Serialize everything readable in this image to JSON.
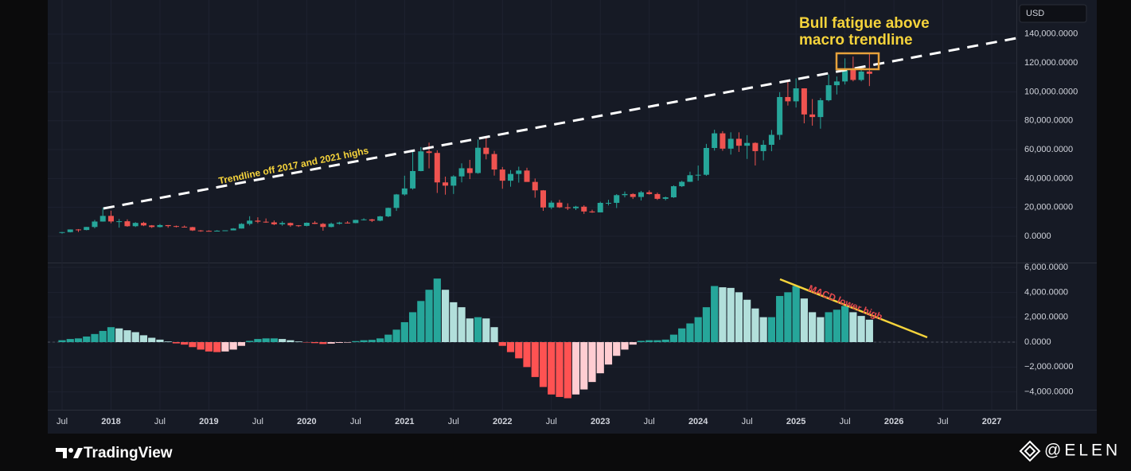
{
  "currency": "USD",
  "brand": "TradingView",
  "watermark": "@ELEN",
  "chart_data": [
    {
      "type": "candlestick",
      "annotations": [
        "Bull fatigue above",
        "macro trendline",
        "Trendline off 2017 and 2021 highs"
      ],
      "up_color": "#26a69a",
      "down_color": "#ef5350",
      "grid": true,
      "ylim": [
        -18200,
        163600
      ],
      "yticks": [
        {
          "value": 0,
          "label": "0.0000"
        },
        {
          "value": 20000,
          "label": "20,000.0000"
        },
        {
          "value": 40000,
          "label": "40,000.0000"
        },
        {
          "value": 60000,
          "label": "60,000.0000"
        },
        {
          "value": 80000,
          "label": "80,000.0000"
        },
        {
          "value": 100000,
          "label": "100,000.0000"
        },
        {
          "value": 120000,
          "label": "120,000.0000"
        },
        {
          "value": 140000,
          "label": "140,000.0000"
        }
      ],
      "x": [
        "2017-07",
        "2017-08",
        "2017-09",
        "2017-10",
        "2017-11",
        "2017-12",
        "2018-01",
        "2018-02",
        "2018-03",
        "2018-04",
        "2018-05",
        "2018-06",
        "2018-07",
        "2018-08",
        "2018-09",
        "2018-10",
        "2018-11",
        "2018-12",
        "2019-01",
        "2019-02",
        "2019-03",
        "2019-04",
        "2019-05",
        "2019-06",
        "2019-07",
        "2019-08",
        "2019-09",
        "2019-10",
        "2019-11",
        "2019-12",
        "2020-01",
        "2020-02",
        "2020-03",
        "2020-04",
        "2020-05",
        "2020-06",
        "2020-07",
        "2020-08",
        "2020-09",
        "2020-10",
        "2020-11",
        "2020-12",
        "2021-01",
        "2021-02",
        "2021-03",
        "2021-04",
        "2021-05",
        "2021-06",
        "2021-07",
        "2021-08",
        "2021-09",
        "2021-10",
        "2021-11",
        "2021-12",
        "2022-01",
        "2022-02",
        "2022-03",
        "2022-04",
        "2022-05",
        "2022-06",
        "2022-07",
        "2022-08",
        "2022-09",
        "2022-10",
        "2022-11",
        "2022-12",
        "2023-01",
        "2023-02",
        "2023-03",
        "2023-04",
        "2023-05",
        "2023-06",
        "2023-07",
        "2023-08",
        "2023-09",
        "2023-10",
        "2023-11",
        "2023-12",
        "2024-01",
        "2024-02",
        "2024-03",
        "2024-04",
        "2024-05",
        "2024-06",
        "2024-07",
        "2024-08",
        "2024-09",
        "2024-10",
        "2024-11",
        "2024-12",
        "2025-01",
        "2025-02",
        "2025-03",
        "2025-04",
        "2025-05",
        "2025-06",
        "2025-07",
        "2025-08",
        "2025-09",
        "2025-10"
      ],
      "open": [
        2480,
        2871,
        4701,
        4341,
        6440,
        10198,
        14112,
        10237,
        10385,
        6973,
        9251,
        7500,
        6391,
        7735,
        7044,
        6619,
        6318,
        4025,
        3746,
        3460,
        3853,
        4105,
        5350,
        8574,
        10818,
        10086,
        9630,
        8299,
        9193,
        7571,
        7194,
        9346,
        8600,
        6438,
        8672,
        9463,
        9145,
        11322,
        11679,
        10796,
        13791,
        19633,
        28951,
        33114,
        45160,
        58800,
        57700,
        37300,
        35040,
        41460,
        47100,
        43790,
        61300,
        56950,
        46210,
        38470,
        43160,
        45510,
        37630,
        31790,
        19940,
        23290,
        20050,
        19420,
        20490,
        17170,
        16540,
        23130,
        23140,
        28470,
        29230,
        27210,
        30470,
        29230,
        25940,
        26970,
        34650,
        37720,
        42280,
        42580,
        61130,
        71280,
        60670,
        67490,
        62680,
        64630,
        58970,
        63330,
        70220,
        96410,
        93430,
        102430,
        84350,
        82550,
        94200,
        104600,
        107200,
        115750,
        108250,
        114050
      ],
      "high": [
        2950,
        4740,
        4975,
        6470,
        11300,
        19783,
        17712,
        11958,
        11710,
        9759,
        9990,
        7760,
        8490,
        7770,
        7410,
        7460,
        6560,
        4310,
        4120,
        4210,
        4110,
        5640,
        9070,
        13880,
        13130,
        12330,
        10900,
        10370,
        9510,
        7750,
        9580,
        10500,
        9190,
        9460,
        10070,
        10430,
        11440,
        12460,
        12050,
        14100,
        19860,
        29300,
        41950,
        58350,
        61780,
        64850,
        59500,
        41300,
        42300,
        50500,
        52900,
        67000,
        69000,
        59100,
        47990,
        45820,
        48200,
        47440,
        40000,
        31990,
        24670,
        25200,
        22790,
        21090,
        21480,
        18390,
        23960,
        25250,
        29190,
        31000,
        29820,
        31430,
        31800,
        30230,
        27480,
        35280,
        38440,
        44730,
        48970,
        63970,
        73800,
        72800,
        71980,
        71960,
        70000,
        65100,
        66500,
        73600,
        99800,
        108350,
        109300,
        102500,
        95000,
        95760,
        111900,
        110600,
        123200,
        124450,
        117900,
        126200
      ],
      "low": [
        1830,
        2671,
        2975,
        4110,
        5500,
        10100,
        9035,
        5968,
        6600,
        6430,
        7035,
        5755,
        6070,
        5880,
        6110,
        6140,
        3650,
        3120,
        3400,
        3400,
        3730,
        4080,
        5330,
        7490,
        9070,
        9320,
        7710,
        7300,
        6520,
        6430,
        6870,
        8450,
        3850,
        6150,
        8110,
        8830,
        8980,
        10950,
        9880,
        10400,
        13200,
        17570,
        28130,
        32290,
        45000,
        47000,
        30000,
        28800,
        29280,
        37330,
        39600,
        43290,
        53250,
        42000,
        32900,
        34320,
        37150,
        37700,
        26700,
        17600,
        18780,
        19600,
        18150,
        18190,
        15480,
        16260,
        16500,
        21350,
        19550,
        26940,
        25810,
        24800,
        28860,
        25170,
        24900,
        26540,
        34100,
        37620,
        38550,
        41880,
        59320,
        59200,
        56550,
        58400,
        53550,
        49000,
        52550,
        58900,
        66800,
        90500,
        89160,
        78200,
        76600,
        74500,
        93400,
        98200,
        105100,
        107300,
        107270,
        104000
      ],
      "close": [
        2871,
        4701,
        4341,
        6440,
        10198,
        14112,
        10237,
        10385,
        6973,
        9251,
        7500,
        6391,
        7735,
        7044,
        6619,
        6318,
        4025,
        3746,
        3460,
        3853,
        4105,
        5350,
        8574,
        10818,
        10086,
        9630,
        8299,
        9193,
        7571,
        7194,
        9346,
        8600,
        6438,
        8672,
        9463,
        9145,
        11322,
        11679,
        10796,
        13791,
        19633,
        28951,
        33114,
        45160,
        58800,
        57700,
        37300,
        35040,
        41460,
        47100,
        43790,
        61300,
        56950,
        46210,
        38470,
        43160,
        45510,
        37630,
        31790,
        19940,
        23290,
        20050,
        19420,
        20490,
        17170,
        16540,
        23130,
        23140,
        28470,
        29230,
        27210,
        30470,
        29230,
        25940,
        26970,
        34650,
        37720,
        42280,
        42580,
        61130,
        71280,
        60670,
        67490,
        62680,
        64630,
        58970,
        63330,
        70220,
        96410,
        93430,
        102430,
        84350,
        82550,
        94200,
        104600,
        107200,
        115750,
        108250,
        114050,
        112500
      ]
    },
    {
      "type": "bar",
      "annotations": [
        "MACD lower high"
      ],
      "colors": {
        "up_rising": "#26a69a",
        "up_falling": "#b2dfdb",
        "down_falling": "#ff5252",
        "down_rising": "#ffcdd2"
      },
      "grid": true,
      "ylim": [
        -5425,
        6320
      ],
      "yticks": [
        {
          "value": -4000,
          "label": "−4,000.0000"
        },
        {
          "value": -2000,
          "label": "−2,000.0000"
        },
        {
          "value": 0,
          "label": "0.0000"
        },
        {
          "value": 2000,
          "label": "2,000.0000"
        },
        {
          "value": 4000,
          "label": "4,000.0000"
        },
        {
          "value": 6000,
          "label": "6,000.0000"
        }
      ],
      "xticks": [
        {
          "value": "2017-07",
          "label": "Jul"
        },
        {
          "value": "2018-01",
          "label": "2018"
        },
        {
          "value": "2018-07",
          "label": "Jul"
        },
        {
          "value": "2019-01",
          "label": "2019"
        },
        {
          "value": "2019-07",
          "label": "Jul"
        },
        {
          "value": "2020-01",
          "label": "2020"
        },
        {
          "value": "2020-07",
          "label": "Jul"
        },
        {
          "value": "2021-01",
          "label": "2021"
        },
        {
          "value": "2021-07",
          "label": "Jul"
        },
        {
          "value": "2022-01",
          "label": "2022"
        },
        {
          "value": "2022-07",
          "label": "Jul"
        },
        {
          "value": "2023-01",
          "label": "2023"
        },
        {
          "value": "2023-07",
          "label": "Jul"
        },
        {
          "value": "2024-01",
          "label": "2024"
        },
        {
          "value": "2024-07",
          "label": "Jul"
        },
        {
          "value": "2025-01",
          "label": "2025"
        },
        {
          "value": "2025-07",
          "label": "Jul"
        },
        {
          "value": "2026-01",
          "label": "2026"
        },
        {
          "value": "2026-07",
          "label": "Jul"
        },
        {
          "value": "2027-01",
          "label": "2027"
        }
      ],
      "values": [
        150,
        250,
        300,
        450,
        650,
        900,
        1200,
        1100,
        950,
        800,
        550,
        350,
        200,
        50,
        -100,
        -200,
        -400,
        -600,
        -750,
        -800,
        -750,
        -600,
        -300,
        100,
        250,
        300,
        300,
        250,
        150,
        50,
        -30,
        -80,
        -150,
        -120,
        -60,
        -40,
        80,
        150,
        180,
        300,
        600,
        1000,
        1600,
        2400,
        3300,
        4200,
        5100,
        4200,
        3200,
        2800,
        1900,
        2000,
        1900,
        1200,
        -300,
        -800,
        -1300,
        -2000,
        -2800,
        -3600,
        -4200,
        -4400,
        -4500,
        -4200,
        -3800,
        -3200,
        -2500,
        -1800,
        -1100,
        -600,
        -200,
        100,
        150,
        150,
        200,
        600,
        1100,
        1500,
        2000,
        2800,
        4500,
        4400,
        4350,
        4000,
        3400,
        2700,
        2000,
        2000,
        3700,
        4000,
        4500,
        3500,
        2400,
        2000,
        2400,
        2600,
        2900,
        2400,
        2100,
        1800
      ]
    }
  ]
}
